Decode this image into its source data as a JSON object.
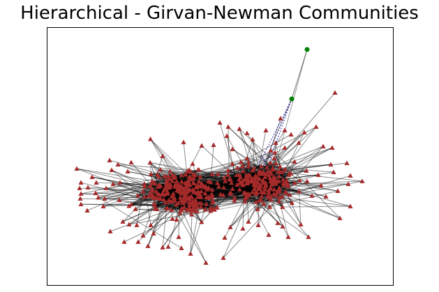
{
  "figure": {
    "title": "Hierarchical - Girvan-Newman Communities"
  },
  "graph": {
    "layout": "force-directed",
    "frame": true,
    "communities": [
      {
        "id": "main",
        "marker": "triangle",
        "color": "#a52a2a",
        "approx_node_count": 520
      },
      {
        "id": "outlier",
        "marker": "circle",
        "color": "#008000",
        "node_count": 2
      }
    ],
    "edge_colors": {
      "default": "#000000",
      "inter_community": "#0000aa"
    },
    "edge_style": {
      "default": "solid",
      "inter_community": "dotted"
    }
  }
}
